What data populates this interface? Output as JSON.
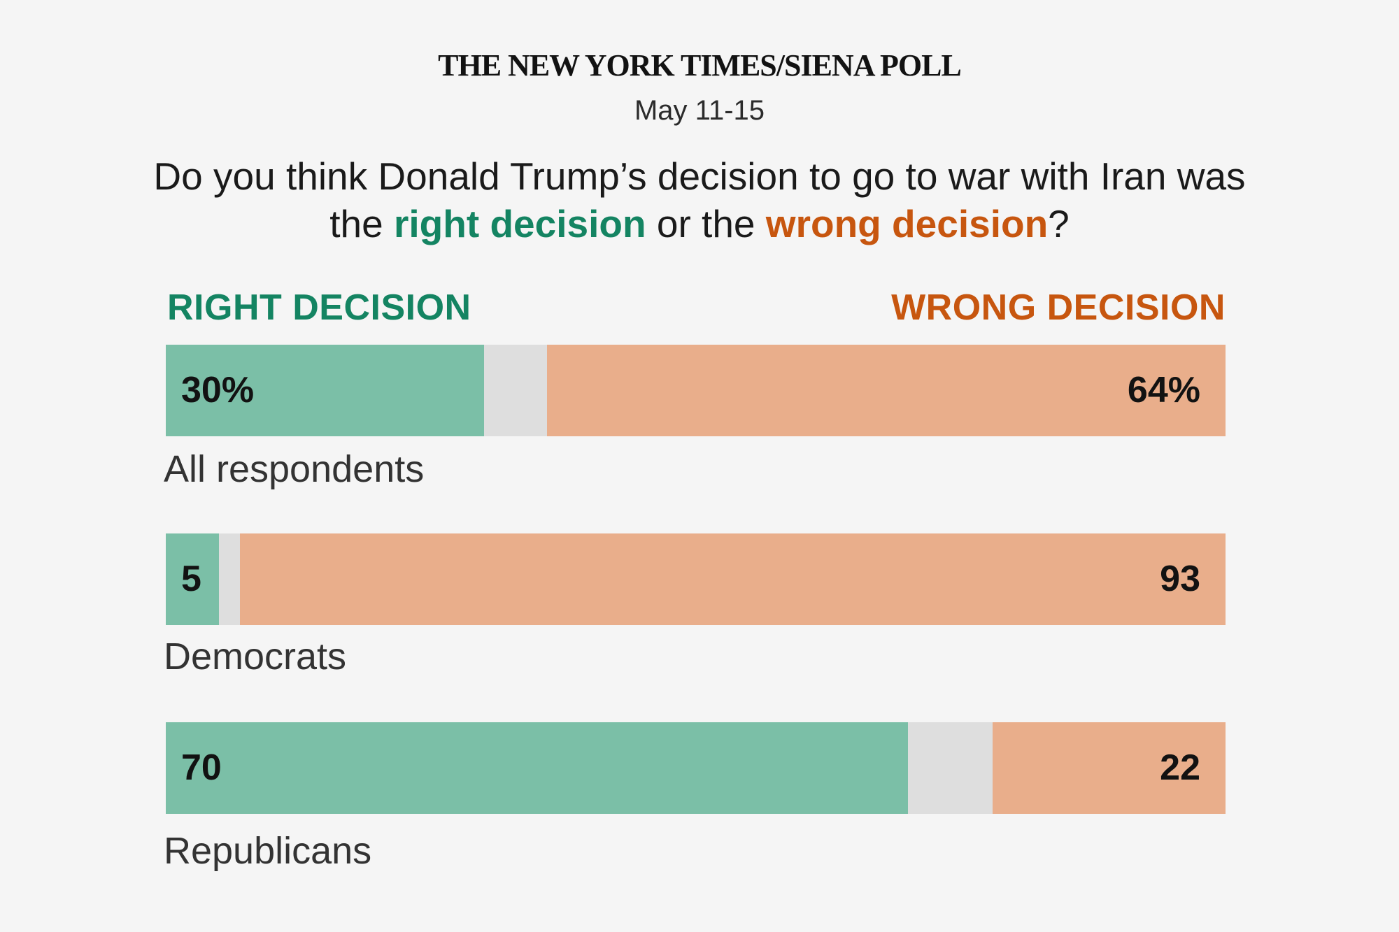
{
  "header": {
    "masthead": "THE NEW YORK TIMES/SIENA POLL",
    "dates": "May 11-15",
    "question_part1": "Do you think Donald Trump’s decision to go to war with Iran was the ",
    "question_right": "right decision",
    "question_mid": " or the ",
    "question_wrong": "wrong decision",
    "question_end": "?"
  },
  "legend": {
    "right_label": "RIGHT DECISION",
    "wrong_label": "WRONG DECISION"
  },
  "colors": {
    "right": "#7bbfa7",
    "other": "#dedede",
    "wrong": "#e9ae8b",
    "right_text": "#148462",
    "wrong_text": "#c7560f"
  },
  "chart_data": {
    "type": "bar",
    "orientation": "horizontal-stacked",
    "categories": [
      "All respondents",
      "Democrats",
      "Republicans"
    ],
    "series": [
      {
        "name": "RIGHT DECISION",
        "values": [
          30,
          5,
          70
        ],
        "labels": [
          "30%",
          "5",
          "70"
        ]
      },
      {
        "name": "",
        "values": [
          6,
          2,
          8
        ]
      },
      {
        "name": "WRONG DECISION",
        "values": [
          64,
          93,
          22
        ],
        "labels": [
          "64%",
          "93",
          "22"
        ]
      }
    ],
    "xlim": [
      0,
      100
    ]
  }
}
